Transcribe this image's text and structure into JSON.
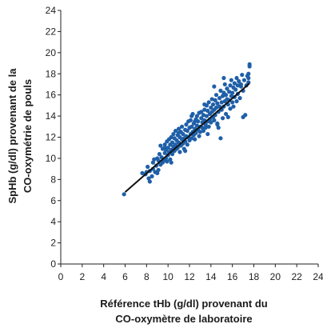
{
  "chart_data": {
    "type": "scatter",
    "title": "",
    "xlabel_lines": [
      "Référence tHb (g/dl) provenant du",
      "CO-oxymètre de laboratoire"
    ],
    "ylabel_lines": [
      "SpHb (g/dl) provenant de la",
      "CO-oxymétrie de pouls"
    ],
    "xlim": [
      0,
      24
    ],
    "ylim": [
      0,
      24
    ],
    "xticks": [
      "0",
      "2",
      "4",
      "6",
      "8",
      "10",
      "12",
      "14",
      "16",
      "18",
      "20",
      "22",
      "24"
    ],
    "yticks": [
      "0",
      "2",
      "4",
      "6",
      "8",
      "10",
      "12",
      "14",
      "16",
      "18",
      "20",
      "22",
      "24"
    ],
    "grid": false,
    "colors": {
      "points": "#1f5fa8",
      "fit_line": "#111111",
      "axis": "#222222"
    },
    "fit_line": {
      "x": [
        6.0,
        17.6
      ],
      "y": [
        6.8,
        17.1
      ]
    },
    "series": [
      {
        "points": [
          [
            5.9,
            6.6
          ],
          [
            7.6,
            8.6
          ],
          [
            7.9,
            8.5
          ],
          [
            8.0,
            8.7
          ],
          [
            8.1,
            9.2
          ],
          [
            8.2,
            8.1
          ],
          [
            8.3,
            7.8
          ],
          [
            8.3,
            8.8
          ],
          [
            8.5,
            8.3
          ],
          [
            8.6,
            9.0
          ],
          [
            8.6,
            9.6
          ],
          [
            8.8,
            8.7
          ],
          [
            8.9,
            9.3
          ],
          [
            9.0,
            10.0
          ],
          [
            9.1,
            8.9
          ],
          [
            9.1,
            9.8
          ],
          [
            9.2,
            10.4
          ],
          [
            9.3,
            9.4
          ],
          [
            9.3,
            11.2
          ],
          [
            9.4,
            10.1
          ],
          [
            9.5,
            9.6
          ],
          [
            9.5,
            10.9
          ],
          [
            9.6,
            9.8
          ],
          [
            9.7,
            10.5
          ],
          [
            9.7,
            11.3
          ],
          [
            9.8,
            10.0
          ],
          [
            9.8,
            10.8
          ],
          [
            9.9,
            9.7
          ],
          [
            9.9,
            11.6
          ],
          [
            10.0,
            10.3
          ],
          [
            10.0,
            11.0
          ],
          [
            10.1,
            10.6
          ],
          [
            10.1,
            11.8
          ],
          [
            10.2,
            9.9
          ],
          [
            10.2,
            11.3
          ],
          [
            10.3,
            10.8
          ],
          [
            10.3,
            12.0
          ],
          [
            10.4,
            10.4
          ],
          [
            10.4,
            11.5
          ],
          [
            10.5,
            11.1
          ],
          [
            10.5,
            12.3
          ],
          [
            10.6,
            10.7
          ],
          [
            10.6,
            11.9
          ],
          [
            10.7,
            11.3
          ],
          [
            10.7,
            12.6
          ],
          [
            10.8,
            10.9
          ],
          [
            10.8,
            11.7
          ],
          [
            10.9,
            12.2
          ],
          [
            10.9,
            11.0
          ],
          [
            11.0,
            12.8
          ],
          [
            11.0,
            11.5
          ],
          [
            11.1,
            10.6
          ],
          [
            11.1,
            12.0
          ],
          [
            11.2,
            11.2
          ],
          [
            11.2,
            12.5
          ],
          [
            11.3,
            11.8
          ],
          [
            11.3,
            13.0
          ],
          [
            11.4,
            11.4
          ],
          [
            11.4,
            12.3
          ],
          [
            11.5,
            10.9
          ],
          [
            11.5,
            11.9
          ],
          [
            11.6,
            12.7
          ],
          [
            11.6,
            11.6
          ],
          [
            11.7,
            13.2
          ],
          [
            11.7,
            12.1
          ],
          [
            11.8,
            11.3
          ],
          [
            11.8,
            12.6
          ],
          [
            11.9,
            13.5
          ],
          [
            11.9,
            12.0
          ],
          [
            12.0,
            11.7
          ],
          [
            12.0,
            12.9
          ],
          [
            12.1,
            12.3
          ],
          [
            12.1,
            13.6
          ],
          [
            12.2,
            11.9
          ],
          [
            12.2,
            13.0
          ],
          [
            12.3,
            12.5
          ],
          [
            12.3,
            14.2
          ],
          [
            12.4,
            12.2
          ],
          [
            12.4,
            13.3
          ],
          [
            12.5,
            12.8
          ],
          [
            12.5,
            11.8
          ],
          [
            12.6,
            13.7
          ],
          [
            12.6,
            12.4
          ],
          [
            12.7,
            13.1
          ],
          [
            12.7,
            14.0
          ],
          [
            12.8,
            12.7
          ],
          [
            12.8,
            13.5
          ],
          [
            12.9,
            12.1
          ],
          [
            12.9,
            14.3
          ],
          [
            13.0,
            13.0
          ],
          [
            13.0,
            12.5
          ],
          [
            13.1,
            13.8
          ],
          [
            13.1,
            14.4
          ],
          [
            13.2,
            12.9
          ],
          [
            13.2,
            13.4
          ],
          [
            13.3,
            14.1
          ],
          [
            13.3,
            12.6
          ],
          [
            13.4,
            13.6
          ],
          [
            13.4,
            14.6
          ],
          [
            13.5,
            13.2
          ],
          [
            13.5,
            12.9
          ],
          [
            13.6,
            14.0
          ],
          [
            13.6,
            15.0
          ],
          [
            13.7,
            13.5
          ],
          [
            13.7,
            14.5
          ],
          [
            13.8,
            13.0
          ],
          [
            13.8,
            15.3
          ],
          [
            13.9,
            14.2
          ],
          [
            13.9,
            13.7
          ],
          [
            14.0,
            14.8
          ],
          [
            14.0,
            13.4
          ],
          [
            14.1,
            15.6
          ],
          [
            14.1,
            14.4
          ],
          [
            14.2,
            13.9
          ],
          [
            14.2,
            15.1
          ],
          [
            14.3,
            14.6
          ],
          [
            14.3,
            13.6
          ],
          [
            14.4,
            15.5
          ],
          [
            14.4,
            14.1
          ],
          [
            14.5,
            16.0
          ],
          [
            14.5,
            14.8
          ],
          [
            14.6,
            13.2
          ],
          [
            14.6,
            15.2
          ],
          [
            14.7,
            14.4
          ],
          [
            14.7,
            12.9
          ],
          [
            14.8,
            15.7
          ],
          [
            14.8,
            14.9
          ],
          [
            14.9,
            11.9
          ],
          [
            14.9,
            16.4
          ],
          [
            15.0,
            15.3
          ],
          [
            15.0,
            14.6
          ],
          [
            15.1,
            15.9
          ],
          [
            15.1,
            13.8
          ],
          [
            15.2,
            16.2
          ],
          [
            15.2,
            14.9
          ],
          [
            15.3,
            15.4
          ],
          [
            15.3,
            17.0
          ],
          [
            15.4,
            16.0
          ],
          [
            15.4,
            14.2
          ],
          [
            15.5,
            15.6
          ],
          [
            15.5,
            16.6
          ],
          [
            15.6,
            15.1
          ],
          [
            15.6,
            13.9
          ],
          [
            15.7,
            16.3
          ],
          [
            15.7,
            15.5
          ],
          [
            15.8,
            14.7
          ],
          [
            15.8,
            16.9
          ],
          [
            15.9,
            15.9
          ],
          [
            15.9,
            17.4
          ],
          [
            16.0,
            16.2
          ],
          [
            16.0,
            15.3
          ],
          [
            16.1,
            16.7
          ],
          [
            16.1,
            14.9
          ],
          [
            16.2,
            17.1
          ],
          [
            16.2,
            15.8
          ],
          [
            16.3,
            16.5
          ],
          [
            16.4,
            15.4
          ],
          [
            16.4,
            17.6
          ],
          [
            16.5,
            16.1
          ],
          [
            16.5,
            16.9
          ],
          [
            16.6,
            17.3
          ],
          [
            16.7,
            15.7
          ],
          [
            16.8,
            16.8
          ],
          [
            16.9,
            17.9
          ],
          [
            17.0,
            13.9
          ],
          [
            17.0,
            16.4
          ],
          [
            17.1,
            17.4
          ],
          [
            17.2,
            14.1
          ],
          [
            17.3,
            16.9
          ],
          [
            17.4,
            17.8
          ],
          [
            17.5,
            17.2
          ],
          [
            17.5,
            18.0
          ],
          [
            17.6,
            18.7
          ],
          [
            17.6,
            18.9
          ],
          [
            17.5,
            17.6
          ],
          [
            14.6,
            13.3
          ],
          [
            13.4,
            15.1
          ],
          [
            12.2,
            14.0
          ],
          [
            11.0,
            12.4
          ],
          [
            10.6,
            11.0
          ],
          [
            9.7,
            11.0
          ],
          [
            10.3,
            9.6
          ],
          [
            11.6,
            10.7
          ],
          [
            12.5,
            13.5
          ],
          [
            13.7,
            12.3
          ],
          [
            14.3,
            16.8
          ],
          [
            15.2,
            17.6
          ],
          [
            16.8,
            17.0
          ],
          [
            8.7,
            9.9
          ],
          [
            9.0,
            8.6
          ]
        ]
      }
    ]
  }
}
